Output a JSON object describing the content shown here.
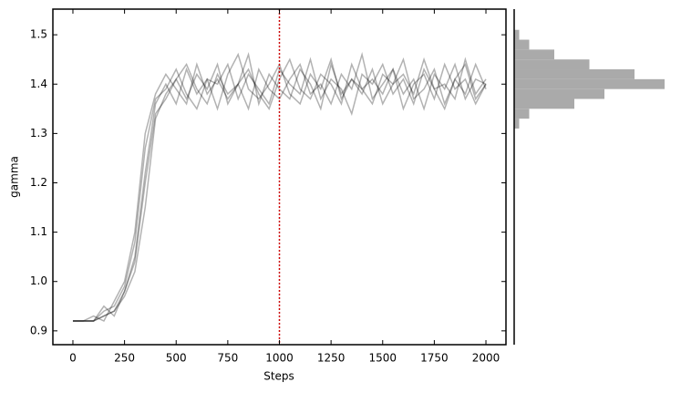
{
  "chart_data": [
    {
      "type": "line",
      "xlabel": "Steps",
      "ylabel": "gamma",
      "xlim": [
        -97,
        2097
      ],
      "ylim": [
        0.872,
        1.552
      ],
      "xticks": [
        0,
        250,
        500,
        750,
        1000,
        1250,
        1500,
        1750,
        2000
      ],
      "yticks": [
        0.9,
        {
          "value": 1,
          "label": "1.0"
        },
        1.1,
        1.2,
        1.3,
        1.4,
        1.5
      ],
      "vline": 1000,
      "vline_color": "#cc0000",
      "x": [
        0,
        50,
        100,
        150,
        200,
        250,
        300,
        350,
        400,
        450,
        500,
        550,
        600,
        650,
        700,
        750,
        800,
        850,
        900,
        950,
        1000,
        1050,
        1100,
        1150,
        1200,
        1250,
        1300,
        1350,
        1400,
        1450,
        1500,
        1550,
        1600,
        1650,
        1700,
        1750,
        1800,
        1850,
        1900,
        1950,
        2000
      ],
      "series": [
        {
          "color": "#000000",
          "values": [
            0.92,
            0.92,
            0.92,
            0.93,
            0.94,
            0.97,
            1.02,
            1.15,
            1.33,
            1.38,
            1.41,
            1.37,
            1.42,
            1.39,
            1.44,
            1.36,
            1.4,
            1.43,
            1.38,
            1.35,
            1.41,
            1.45,
            1.39,
            1.37,
            1.42,
            1.4,
            1.36,
            1.44,
            1.39,
            1.41,
            1.38,
            1.43,
            1.35,
            1.4,
            1.42,
            1.37,
            1.44,
            1.39,
            1.41,
            1.36,
            1.4
          ]
        },
        {
          "color": "#000000",
          "values": [
            0.92,
            0.92,
            0.92,
            0.95,
            0.93,
            0.98,
            1.05,
            1.22,
            1.36,
            1.4,
            1.36,
            1.43,
            1.38,
            1.41,
            1.35,
            1.42,
            1.46,
            1.39,
            1.37,
            1.4,
            1.44,
            1.38,
            1.36,
            1.42,
            1.39,
            1.45,
            1.37,
            1.41,
            1.38,
            1.43,
            1.36,
            1.4,
            1.42,
            1.38,
            1.45,
            1.39,
            1.35,
            1.41,
            1.44,
            1.37,
            1.4
          ]
        },
        {
          "color": "#000000",
          "values": [
            0.92,
            0.92,
            0.92,
            0.94,
            0.95,
            0.99,
            1.08,
            1.27,
            1.37,
            1.39,
            1.43,
            1.38,
            1.35,
            1.41,
            1.4,
            1.44,
            1.37,
            1.42,
            1.39,
            1.36,
            1.43,
            1.4,
            1.38,
            1.45,
            1.37,
            1.41,
            1.39,
            1.34,
            1.42,
            1.4,
            1.44,
            1.38,
            1.41,
            1.36,
            1.43,
            1.39,
            1.4,
            1.37,
            1.45,
            1.38,
            1.41
          ]
        },
        {
          "color": "#000000",
          "values": [
            0.92,
            0.92,
            0.93,
            0.92,
            0.96,
            1.0,
            1.1,
            1.3,
            1.38,
            1.42,
            1.39,
            1.36,
            1.44,
            1.38,
            1.41,
            1.37,
            1.4,
            1.46,
            1.36,
            1.42,
            1.39,
            1.37,
            1.43,
            1.4,
            1.35,
            1.44,
            1.38,
            1.41,
            1.39,
            1.36,
            1.42,
            1.4,
            1.45,
            1.37,
            1.39,
            1.43,
            1.36,
            1.41,
            1.38,
            1.44,
            1.39
          ]
        },
        {
          "color": "#000000",
          "values": [
            0.92,
            0.92,
            0.92,
            0.93,
            0.94,
            0.98,
            1.04,
            1.2,
            1.34,
            1.37,
            1.41,
            1.44,
            1.39,
            1.36,
            1.42,
            1.38,
            1.4,
            1.35,
            1.43,
            1.39,
            1.37,
            1.41,
            1.44,
            1.38,
            1.4,
            1.36,
            1.42,
            1.39,
            1.46,
            1.37,
            1.4,
            1.43,
            1.38,
            1.41,
            1.35,
            1.42,
            1.39,
            1.44,
            1.37,
            1.41,
            1.4
          ]
        }
      ]
    },
    {
      "type": "histogram",
      "orientation": "horizontal",
      "color": "#aaaaaa",
      "bins": [
        1.31,
        1.33,
        1.35,
        1.37,
        1.39,
        1.41,
        1.43,
        1.45,
        1.47,
        1.49,
        1.51
      ],
      "values": [
        5,
        15,
        60,
        90,
        150,
        120,
        75,
        40,
        15,
        5
      ]
    }
  ]
}
